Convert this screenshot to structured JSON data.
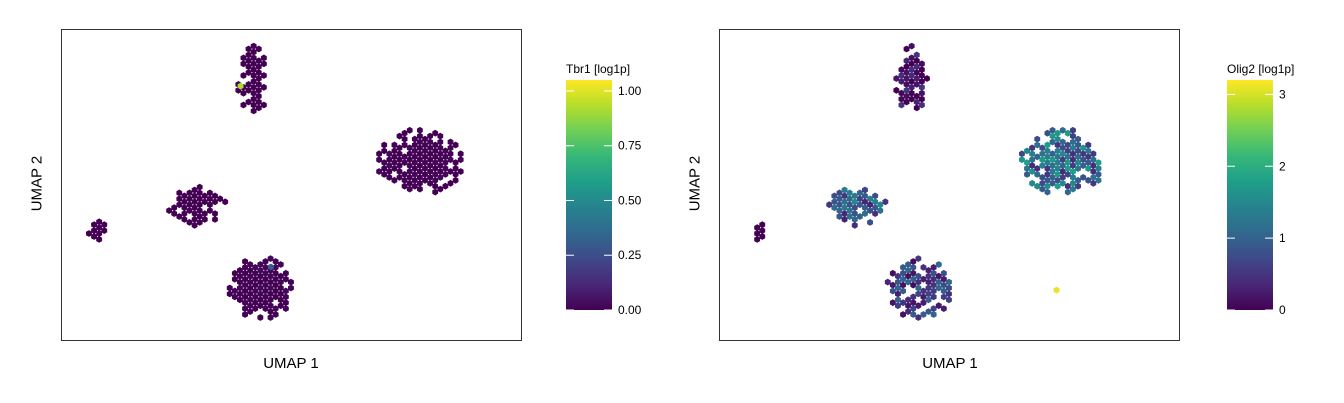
{
  "chart_data": [
    {
      "type": "scatter",
      "subtype": "hexbin-embedding",
      "title": "",
      "xlabel": "UMAP 1",
      "ylabel": "UMAP 2",
      "colorbar": {
        "title": "Tbr1 [log1p]",
        "range": [
          0,
          1.05
        ],
        "ticks": [
          0.0,
          0.25,
          0.5,
          0.75,
          1.0
        ],
        "tick_labels": [
          "0.00",
          "0.25",
          "0.50",
          "0.75",
          "1.00"
        ],
        "colormap": "viridis"
      },
      "clusters": [
        {
          "name": "top",
          "cx": -2.8,
          "cy": 6.8,
          "rx": 0.7,
          "ry": 1.6,
          "mean": 0.0,
          "spread": 0.0
        },
        {
          "name": "right",
          "cx": 4.9,
          "cy": 2.9,
          "rx": 1.9,
          "ry": 1.5,
          "mean": 0.0,
          "spread": 0.02
        },
        {
          "name": "middle-left",
          "cx": -5.4,
          "cy": 0.8,
          "rx": 1.3,
          "ry": 0.9,
          "mean": 0.0,
          "spread": 0.0
        },
        {
          "name": "bottom",
          "cx": -2.4,
          "cy": -3.1,
          "rx": 1.5,
          "ry": 1.4,
          "mean": 0.0,
          "spread": 0.02
        },
        {
          "name": "small-left",
          "cx": -10.0,
          "cy": -0.4,
          "rx": 0.4,
          "ry": 0.45,
          "mean": 0.0,
          "spread": 0.0
        }
      ],
      "highlights": [
        {
          "x": -3.4,
          "y": 6.5,
          "value": 0.92
        },
        {
          "x": -2.0,
          "y": -2.1,
          "value": 0.3
        }
      ],
      "xlim": [
        -11.0,
        9.0
      ],
      "ylim": [
        -5.0,
        8.5
      ]
    },
    {
      "type": "scatter",
      "subtype": "hexbin-embedding",
      "title": "",
      "xlabel": "UMAP 1",
      "ylabel": "UMAP 2",
      "colorbar": {
        "title": "Olig2 [log1p]",
        "range": [
          0,
          3.2
        ],
        "ticks": [
          0,
          1,
          2,
          3
        ],
        "tick_labels": [
          "0",
          "1",
          "2",
          "3"
        ],
        "colormap": "viridis"
      },
      "clusters": [
        {
          "name": "top",
          "cx": -1.4,
          "cy": 6.8,
          "rx": 0.7,
          "ry": 1.6,
          "mean": 0.15,
          "spread": 0.4
        },
        {
          "name": "right",
          "cx": 5.6,
          "cy": 2.9,
          "rx": 1.9,
          "ry": 1.5,
          "mean": 1.1,
          "spread": 0.7
        },
        {
          "name": "middle-left",
          "cx": -3.9,
          "cy": 0.8,
          "rx": 1.3,
          "ry": 0.9,
          "mean": 0.9,
          "spread": 0.6
        },
        {
          "name": "bottom",
          "cx": -1.0,
          "cy": -3.1,
          "rx": 1.5,
          "ry": 1.4,
          "mean": 0.6,
          "spread": 0.5
        },
        {
          "name": "small-left",
          "cx": -8.6,
          "cy": -0.4,
          "rx": 0.4,
          "ry": 0.45,
          "mean": 0.0,
          "spread": 0.0
        }
      ],
      "highlights": [
        {
          "x": 5.3,
          "y": -3.2,
          "value": 3.1
        }
      ],
      "xlim": [
        -9.6,
        10.4
      ],
      "ylim": [
        -5.0,
        8.5
      ]
    }
  ]
}
